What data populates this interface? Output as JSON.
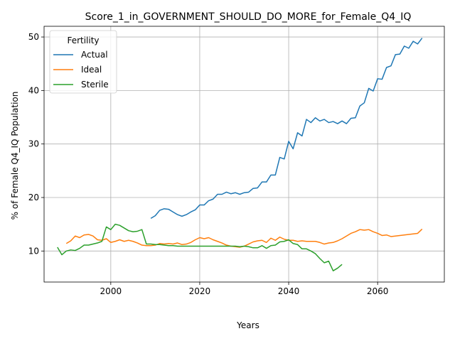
{
  "chart_data": {
    "type": "line",
    "title": "Score_1_in_GOVERNMENT_SHOULD_DO_MORE_for_Female_Q4_IQ",
    "xlabel": "Years",
    "ylabel": "% of Female Q4_IQ Population",
    "xlim": [
      1985,
      2075
    ],
    "ylim": [
      4.2,
      52
    ],
    "xticks": [
      2000,
      2020,
      2040,
      2060
    ],
    "yticks": [
      10,
      20,
      30,
      40,
      50
    ],
    "grid": true,
    "legend": {
      "title": "Fertility",
      "placement": "top-left"
    },
    "series": [
      {
        "name": "Actual",
        "color": "#1f77b4",
        "x": [
          2009,
          2010,
          2011,
          2012,
          2013,
          2014,
          2015,
          2016,
          2017,
          2018,
          2019,
          2020,
          2021,
          2022,
          2023,
          2024,
          2025,
          2026,
          2027,
          2028,
          2029,
          2030,
          2031,
          2032,
          2033,
          2034,
          2035,
          2036,
          2037,
          2038,
          2039,
          2040,
          2041,
          2042,
          2043,
          2044,
          2045,
          2046,
          2047,
          2048,
          2049,
          2050,
          2051,
          2052,
          2053,
          2054,
          2055,
          2056,
          2057,
          2058,
          2059,
          2060,
          2061,
          2062,
          2063,
          2064,
          2065,
          2066,
          2067,
          2068,
          2069,
          2070
        ],
        "y": [
          16.1,
          16.6,
          17.6,
          17.9,
          17.8,
          17.3,
          16.8,
          16.5,
          16.8,
          17.3,
          17.7,
          18.6,
          18.6,
          19.4,
          19.7,
          20.6,
          20.6,
          21.0,
          20.7,
          20.9,
          20.6,
          20.9,
          21.0,
          21.7,
          21.8,
          22.9,
          22.9,
          24.2,
          24.2,
          27.5,
          27.2,
          30.5,
          29.1,
          32.1,
          31.5,
          34.6,
          34.0,
          34.9,
          34.3,
          34.6,
          34.0,
          34.2,
          33.8,
          34.3,
          33.8,
          34.8,
          34.9,
          37.1,
          37.7,
          40.4,
          39.9,
          42.2,
          42.1,
          44.3,
          44.6,
          46.7,
          46.8,
          48.3,
          47.9,
          49.2,
          48.7,
          49.8
        ]
      },
      {
        "name": "Ideal",
        "color": "#ff7f0e",
        "x": [
          1990,
          1991,
          1992,
          1993,
          1994,
          1995,
          1996,
          1997,
          1998,
          1999,
          2000,
          2001,
          2002,
          2003,
          2004,
          2005,
          2006,
          2007,
          2008,
          2009,
          2010,
          2011,
          2012,
          2013,
          2014,
          2015,
          2016,
          2017,
          2018,
          2019,
          2020,
          2021,
          2022,
          2023,
          2024,
          2025,
          2026,
          2027,
          2028,
          2029,
          2030,
          2031,
          2032,
          2033,
          2034,
          2035,
          2036,
          2037,
          2038,
          2039,
          2040,
          2041,
          2042,
          2043,
          2044,
          2045,
          2046,
          2047,
          2048,
          2049,
          2050,
          2051,
          2052,
          2053,
          2054,
          2055,
          2056,
          2057,
          2058,
          2059,
          2060,
          2061,
          2062,
          2063,
          2064,
          2065,
          2066,
          2067,
          2068,
          2069,
          2070
        ],
        "y": [
          11.4,
          11.9,
          12.8,
          12.5,
          13.0,
          13.1,
          12.8,
          12.1,
          12.0,
          12.3,
          11.6,
          11.8,
          12.1,
          11.8,
          12.0,
          11.8,
          11.5,
          11.1,
          11.0,
          11.0,
          11.1,
          11.4,
          11.3,
          11.4,
          11.3,
          11.5,
          11.2,
          11.3,
          11.6,
          12.1,
          12.5,
          12.3,
          12.5,
          12.1,
          11.8,
          11.5,
          11.1,
          10.9,
          10.8,
          10.7,
          10.9,
          11.3,
          11.7,
          11.9,
          12.0,
          11.6,
          12.4,
          12.0,
          12.6,
          12.2,
          12.0,
          12.0,
          11.8,
          11.9,
          11.8,
          11.8,
          11.8,
          11.6,
          11.3,
          11.5,
          11.6,
          11.9,
          12.3,
          12.8,
          13.3,
          13.6,
          14.0,
          13.9,
          14.0,
          13.6,
          13.3,
          12.9,
          13.0,
          12.7,
          12.8,
          12.9,
          13.0,
          13.1,
          13.2,
          13.3,
          14.1
        ]
      },
      {
        "name": "Sterile",
        "color": "#2ca02c",
        "x": [
          1988,
          1989,
          1990,
          1991,
          1992,
          1993,
          1994,
          1995,
          1996,
          1997,
          1998,
          1999,
          2000,
          2001,
          2002,
          2003,
          2004,
          2005,
          2006,
          2007,
          2008,
          2009,
          2010,
          2011,
          2012,
          2013,
          2014,
          2015,
          2016,
          2017,
          2018,
          2019,
          2020,
          2021,
          2022,
          2023,
          2024,
          2025,
          2026,
          2027,
          2028,
          2029,
          2030,
          2031,
          2032,
          2033,
          2034,
          2035,
          2036,
          2037,
          2038,
          2039,
          2040,
          2041,
          2042,
          2043,
          2044,
          2045,
          2046,
          2047,
          2048,
          2049,
          2050,
          2051,
          2052
        ],
        "y": [
          10.7,
          9.3,
          10.0,
          10.2,
          10.1,
          10.5,
          11.1,
          11.1,
          11.3,
          11.5,
          11.8,
          14.5,
          14.0,
          15.0,
          14.8,
          14.3,
          13.8,
          13.6,
          13.7,
          14.0,
          11.3,
          11.3,
          11.2,
          11.2,
          11.1,
          11.0,
          11.0,
          10.9,
          10.9,
          10.9,
          10.9,
          10.9,
          10.9,
          10.9,
          10.9,
          10.9,
          10.9,
          10.9,
          10.9,
          10.9,
          10.9,
          10.8,
          10.9,
          10.8,
          10.6,
          10.6,
          11.0,
          10.5,
          11.0,
          11.1,
          11.7,
          11.8,
          12.1,
          11.4,
          11.2,
          10.4,
          10.4,
          10.0,
          9.5,
          8.6,
          7.8,
          8.1,
          6.3,
          6.8,
          7.5
        ]
      }
    ]
  }
}
